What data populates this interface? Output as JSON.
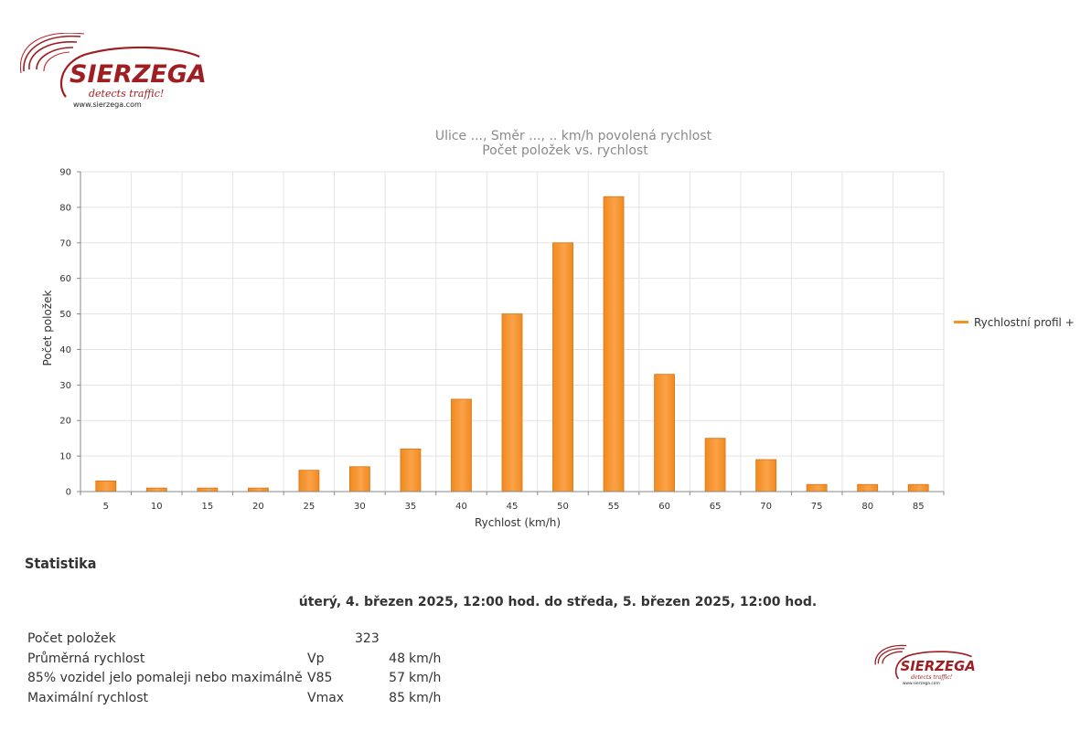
{
  "logo": {
    "brand": "SIERZEGA",
    "tagline": "detects traffic!",
    "url": "www.sierzega.com"
  },
  "chart_data": {
    "type": "bar",
    "title": "Ulice ..., Směr ..., .. km/h povolená rychlost",
    "subtitle": "Počet položek vs. rychlost",
    "xlabel": "Rychlost (km/h)",
    "ylabel": "Počet položek",
    "categories": [
      "5",
      "10",
      "15",
      "20",
      "25",
      "30",
      "35",
      "40",
      "45",
      "50",
      "55",
      "60",
      "65",
      "70",
      "75",
      "80",
      "85"
    ],
    "series": [
      {
        "name": "Rychlostní profil +",
        "values": [
          3,
          1,
          1,
          1,
          6,
          7,
          12,
          26,
          50,
          70,
          83,
          33,
          15,
          9,
          2,
          2,
          2
        ]
      }
    ],
    "ylim": [
      0,
      90
    ],
    "yticks": [
      0,
      10,
      20,
      30,
      40,
      50,
      60,
      70,
      80,
      90
    ],
    "grid": true,
    "legend_position": "right",
    "bar_color": "#F7931E"
  },
  "stats": {
    "heading": "Statistika",
    "period": "úterý, 4. březen 2025, 12:00 hod. do středa, 5. březen 2025, 12:00 hod.",
    "rows": [
      {
        "label": "Počet položek",
        "symbol": "",
        "value": "323",
        "unit": ""
      },
      {
        "label": "Průměrná rychlost",
        "symbol": "Vp",
        "value": "48",
        "unit": "km/h"
      },
      {
        "label": "85% vozidel jelo pomaleji nebo maximálně",
        "symbol": "V85",
        "value": "57",
        "unit": "km/h"
      },
      {
        "label": "Maximální rychlost",
        "symbol": "Vmax",
        "value": "85",
        "unit": "km/h"
      }
    ]
  }
}
